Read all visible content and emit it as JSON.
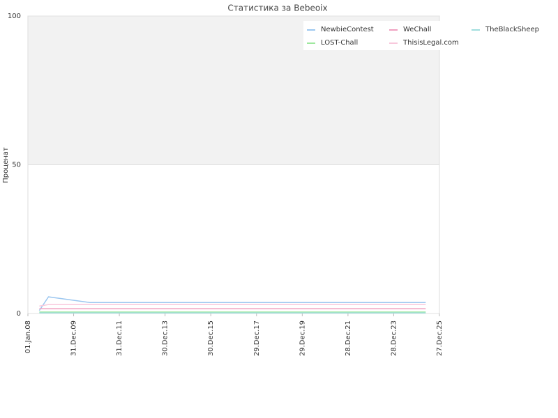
{
  "chart_data": {
    "type": "line",
    "title": "Статистика за Bebeoix",
    "y_label": "Проценат",
    "x": [
      2008.5,
      2008.9,
      2010.7,
      2025.4
    ],
    "xlim": [
      2008,
      2026
    ],
    "xticks": [
      {
        "value": 2008,
        "label": "01.Jan.08"
      },
      {
        "value": 2010,
        "label": "31.Dec.09"
      },
      {
        "value": 2012,
        "label": "31.Dec.11"
      },
      {
        "value": 2014,
        "label": "30.Dec.13"
      },
      {
        "value": 2016,
        "label": "30.Dec.15"
      },
      {
        "value": 2018,
        "label": "29.Dec.17"
      },
      {
        "value": 2020,
        "label": "29.Dec.19"
      },
      {
        "value": 2022,
        "label": "28.Dec.21"
      },
      {
        "value": 2024,
        "label": "28.Dec.23"
      },
      {
        "value": 2026,
        "label": "27.Dec.25"
      }
    ],
    "ylim": [
      0,
      100
    ],
    "yticks": [
      0,
      50,
      100
    ],
    "grid": true,
    "legend": "top-right",
    "series": [
      {
        "name": "NewbieContest",
        "color": "#9cc7f0",
        "values": [
          1,
          5.6,
          3.7,
          3.7
        ]
      },
      {
        "name": "LOST-Chall",
        "color": "#9ee89e",
        "values": [
          0.5,
          0.5,
          0.5,
          0.5
        ]
      },
      {
        "name": "WeChall",
        "color": "#f0a0c0",
        "values": [
          1.6,
          1.6,
          1.6,
          1.6
        ]
      },
      {
        "name": "ThisisLegal.com",
        "color": "#f8c8dc",
        "values": [
          2.5,
          3,
          3,
          3
        ]
      },
      {
        "name": "TheBlackSheep",
        "color": "#a0dede",
        "values": [
          0.2,
          0.2,
          0.2,
          0.2
        ]
      }
    ]
  }
}
